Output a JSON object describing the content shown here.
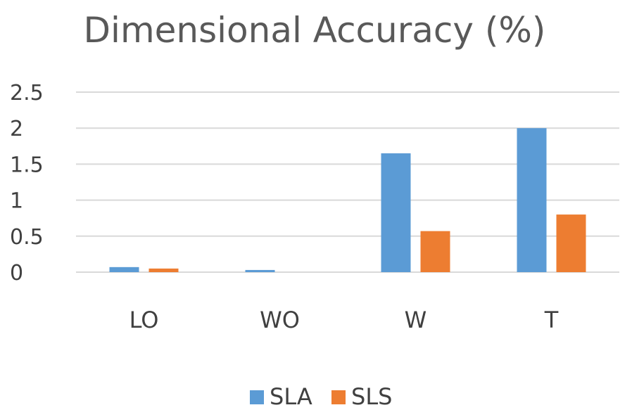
{
  "chart_data": {
    "type": "bar",
    "title": "Dimensional Accuracy (%)",
    "xlabel": "",
    "ylabel": "",
    "categories": [
      "LO",
      "WO",
      "W",
      "T"
    ],
    "series": [
      {
        "name": "SLA",
        "values": [
          0.07,
          0.03,
          1.65,
          2.0
        ],
        "color": "#5b9bd5"
      },
      {
        "name": "SLS",
        "values": [
          0.05,
          0.0,
          0.57,
          0.8
        ],
        "color": "#ed7d31"
      }
    ],
    "ylim": [
      0,
      2.5
    ],
    "yticks": [
      "0",
      "0.5",
      "1",
      "1.5",
      "2",
      "2.5"
    ],
    "grid": true,
    "legend_position": "bottom"
  }
}
